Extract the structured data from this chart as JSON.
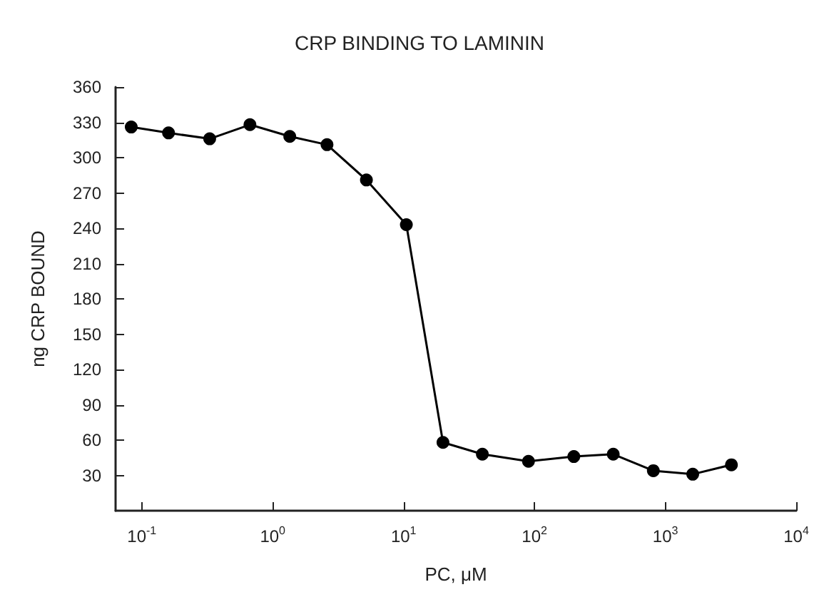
{
  "chart_data": {
    "type": "line",
    "title": "CRP BINDING TO LAMININ",
    "xlabel": "PC, μM",
    "ylabel": "ng CRP BOUND",
    "log": "x",
    "x": [
      0.083,
      0.16,
      0.33,
      0.67,
      1.35,
      2.6,
      5.2,
      10.5,
      20,
      40,
      90,
      200,
      400,
      810,
      1620,
      3200
    ],
    "series": [
      {
        "color": "#000000",
        "values": [
          326,
          321,
          316,
          328,
          318,
          311,
          281,
          243,
          58,
          48,
          42,
          46,
          48,
          34,
          31,
          39
        ]
      }
    ],
    "xlim": [
      0.063,
      10000
    ],
    "xticks": [
      {
        "value": 0.1,
        "label": "10$^{-1}$"
      },
      {
        "value": 1,
        "label": "10$^{0}$"
      },
      {
        "value": 10,
        "label": "10$^{1}$"
      },
      {
        "value": 100,
        "label": "10$^{2}$"
      },
      {
        "value": 1000,
        "label": "10$^{3}$"
      },
      {
        "value": 10000,
        "label": "10$^{4}$"
      }
    ],
    "ylim": [
      0,
      360
    ],
    "yticks": [
      30,
      60,
      90,
      120,
      150,
      180,
      210,
      240,
      270,
      300,
      330,
      360
    ],
    "grid": false,
    "marker": "circle",
    "line_style": "solid"
  }
}
